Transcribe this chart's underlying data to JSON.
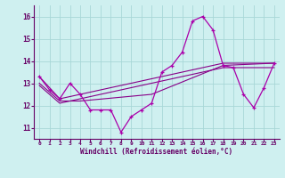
{
  "xlabel": "Windchill (Refroidissement éolien,°C)",
  "bg_color": "#cff0f0",
  "grid_color": "#a8d8d8",
  "line_color": "#aa00aa",
  "line_color2": "#880088",
  "xlim": [
    -0.5,
    23.5
  ],
  "ylim": [
    10.5,
    16.5
  ],
  "yticks": [
    11,
    12,
    13,
    14,
    15,
    16
  ],
  "xticks": [
    0,
    1,
    2,
    3,
    4,
    5,
    6,
    7,
    8,
    9,
    10,
    11,
    12,
    13,
    14,
    15,
    16,
    17,
    18,
    19,
    20,
    21,
    22,
    23
  ],
  "curve1_x": [
    0,
    1,
    2,
    3,
    4,
    5,
    6,
    7,
    8,
    9,
    10,
    11,
    12,
    13,
    14,
    15,
    16,
    17,
    18,
    19,
    20,
    21,
    22,
    23
  ],
  "curve1_y": [
    13.3,
    12.7,
    12.3,
    13.0,
    12.5,
    11.8,
    11.8,
    11.8,
    10.8,
    11.5,
    11.8,
    12.1,
    13.5,
    13.8,
    14.4,
    15.8,
    16.0,
    15.4,
    13.8,
    13.7,
    12.5,
    11.9,
    12.8,
    13.9
  ],
  "curve2_x": [
    0,
    2,
    4,
    18,
    23
  ],
  "curve2_y": [
    13.3,
    12.3,
    12.5,
    13.9,
    13.9
  ],
  "curve3_x": [
    0,
    2,
    4,
    11,
    18,
    23
  ],
  "curve3_y": [
    13.0,
    12.2,
    12.2,
    12.5,
    13.8,
    13.9
  ],
  "curve4_x": [
    0,
    2,
    18,
    23
  ],
  "curve4_y": [
    12.9,
    12.1,
    13.7,
    13.7
  ]
}
